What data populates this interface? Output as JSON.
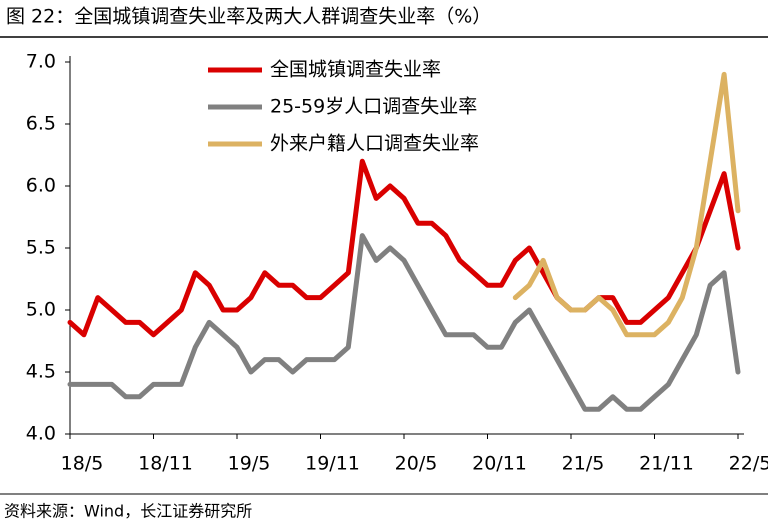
{
  "chart_data": {
    "type": "line",
    "title": "图 22：全国城镇调查失业率及两大人群调查失业率（%）",
    "source": "资料来源：Wind，长江证券研究所",
    "categories": [
      "18/5",
      null,
      null,
      null,
      null,
      null,
      "18/11",
      null,
      null,
      null,
      null,
      null,
      "19/5",
      null,
      null,
      null,
      null,
      null,
      "19/11",
      null,
      null,
      null,
      null,
      null,
      "20/5",
      null,
      null,
      null,
      null,
      null,
      "20/11",
      null,
      null,
      null,
      null,
      null,
      "21/5",
      null,
      null,
      null,
      null,
      null,
      "21/11",
      null,
      null,
      null,
      null,
      null,
      "22/5"
    ],
    "series": [
      {
        "name": "全国城镇调查失业率",
        "color": "#d90000",
        "values": [
          4.9,
          4.8,
          5.1,
          5.0,
          4.9,
          4.9,
          4.8,
          4.9,
          5.0,
          5.3,
          5.2,
          5.0,
          5.0,
          5.1,
          5.3,
          5.2,
          5.2,
          5.1,
          5.1,
          5.2,
          5.3,
          6.2,
          5.9,
          6.0,
          5.9,
          5.7,
          5.7,
          5.6,
          5.4,
          5.3,
          5.2,
          5.2,
          5.4,
          5.5,
          5.3,
          5.1,
          5.0,
          5.0,
          5.1,
          5.1,
          4.9,
          4.9,
          5.0,
          5.1,
          5.3,
          5.5,
          5.8,
          6.1,
          5.5
        ]
      },
      {
        "name": "25-59岁人口调查失业率",
        "color": "#808080",
        "values": [
          4.4,
          4.4,
          4.4,
          4.4,
          4.3,
          4.3,
          4.4,
          4.4,
          4.4,
          4.7,
          4.9,
          4.8,
          4.7,
          4.5,
          4.6,
          4.6,
          4.5,
          4.6,
          4.6,
          4.6,
          4.7,
          5.6,
          5.4,
          5.5,
          5.4,
          5.2,
          5.0,
          4.8,
          4.8,
          4.8,
          4.7,
          4.7,
          4.9,
          5.0,
          4.8,
          4.6,
          4.4,
          4.2,
          4.2,
          4.3,
          4.2,
          4.2,
          4.3,
          4.4,
          4.6,
          4.8,
          5.2,
          5.3,
          4.5
        ]
      },
      {
        "name": "外来户籍人口调查失业率",
        "color": "#dcb262",
        "values": [
          null,
          null,
          null,
          null,
          null,
          null,
          null,
          null,
          null,
          null,
          null,
          null,
          null,
          null,
          null,
          null,
          null,
          null,
          null,
          null,
          null,
          null,
          null,
          null,
          null,
          null,
          null,
          null,
          null,
          null,
          null,
          null,
          5.1,
          5.2,
          5.4,
          5.1,
          5.0,
          5.0,
          5.1,
          5.0,
          4.8,
          4.8,
          4.8,
          4.9,
          5.1,
          5.5,
          6.2,
          6.9,
          5.8
        ]
      }
    ],
    "ylim": [
      4.0,
      7.0
    ],
    "yticks": [
      {
        "value": 4.0,
        "label": "4.0"
      },
      4.5,
      {
        "value": 5.0,
        "label": "5.0"
      },
      5.5,
      {
        "value": 6.0,
        "label": "6.0"
      },
      6.5,
      {
        "value": 7.0,
        "label": "7.0"
      }
    ],
    "grid": false,
    "legend": "top"
  }
}
